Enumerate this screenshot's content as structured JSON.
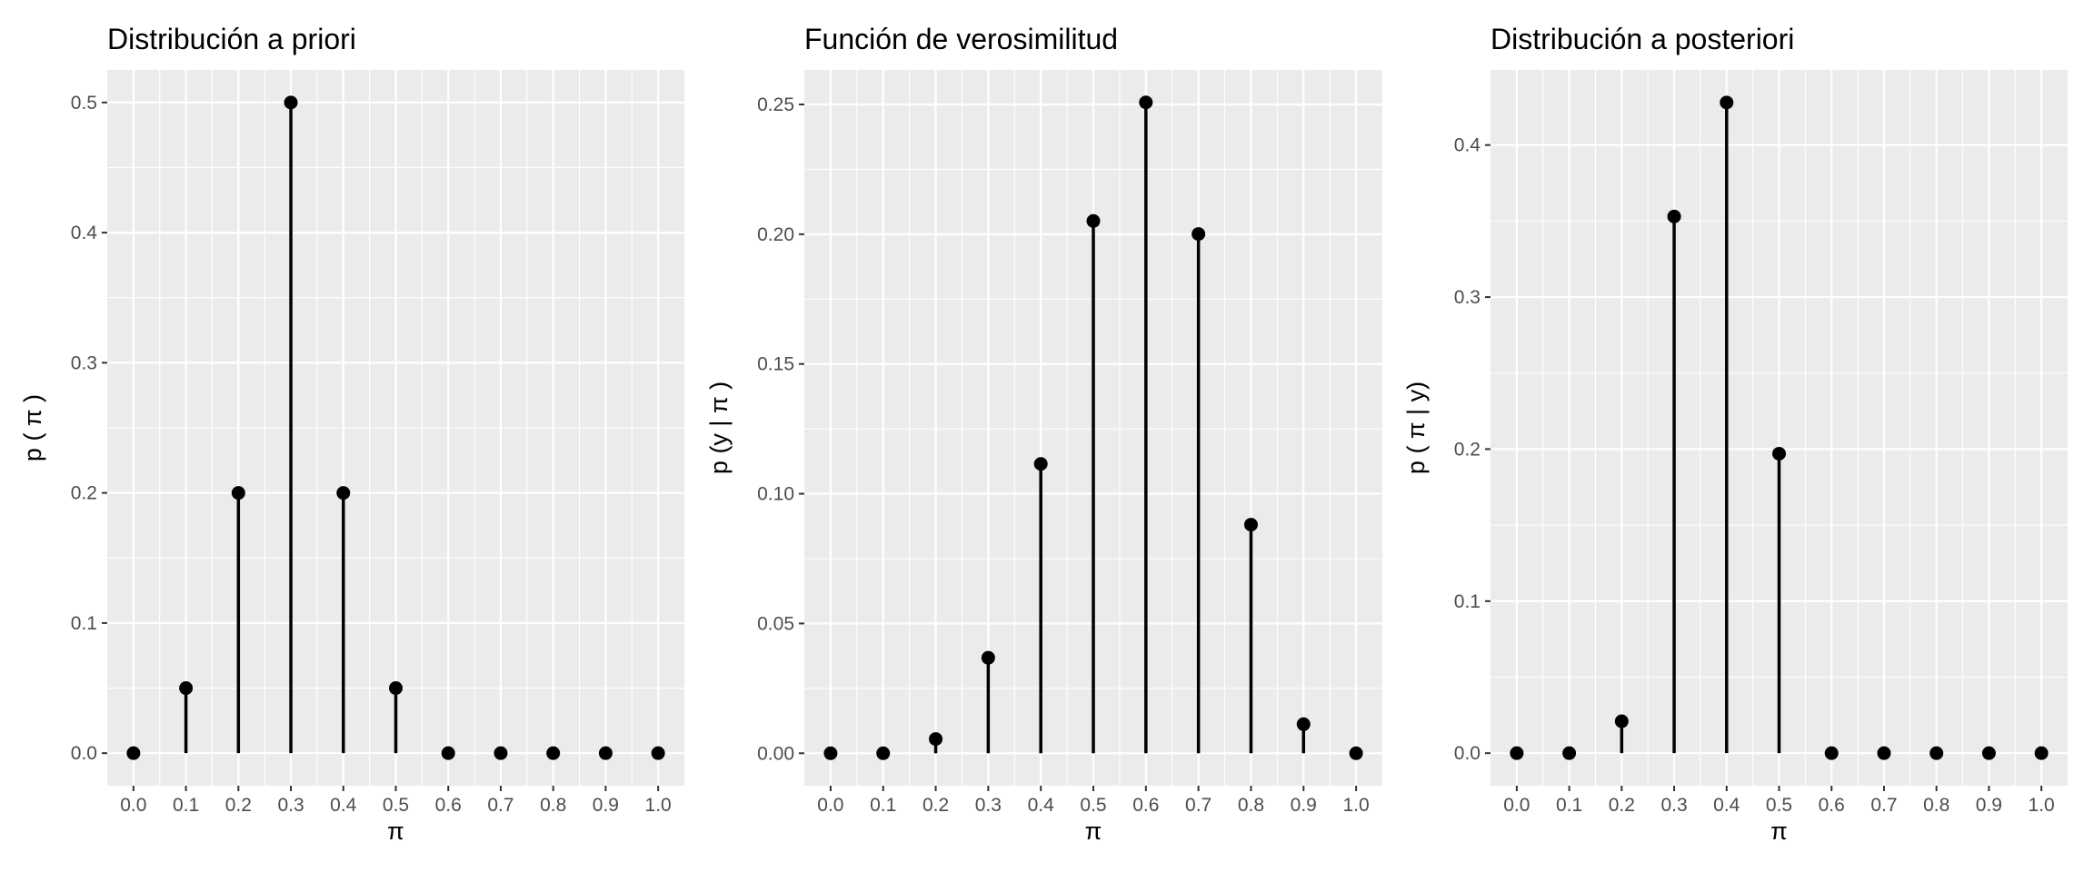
{
  "chart_data": [
    {
      "type": "scatter",
      "mark": "lollipop",
      "title": "Distribución a priori",
      "xlabel": "π",
      "ylabel": "p ( π )",
      "x": [
        0.0,
        0.1,
        0.2,
        0.3,
        0.4,
        0.5,
        0.6,
        0.7,
        0.8,
        0.9,
        1.0
      ],
      "y": [
        0.0,
        0.05,
        0.2,
        0.5,
        0.2,
        0.05,
        0.0,
        0.0,
        0.0,
        0.0,
        0.0
      ],
      "xlim": [
        -0.05,
        1.05
      ],
      "ylim": [
        -0.025,
        0.525
      ],
      "xticks": [
        "0.0",
        "0.1",
        "0.2",
        "0.3",
        "0.4",
        "0.5",
        "0.6",
        "0.7",
        "0.8",
        "0.9",
        "1.0"
      ],
      "yticks": [
        0.0,
        0.1,
        0.2,
        0.3,
        0.4,
        0.5
      ],
      "ytick_labels": [
        "0.0",
        "0.1",
        "0.2",
        "0.3",
        "0.4",
        "0.5"
      ],
      "grid": true
    },
    {
      "type": "scatter",
      "mark": "lollipop",
      "title": "Función de verosimilitud",
      "xlabel": "π",
      "ylabel": "p (y |  π )",
      "x": [
        0.0,
        0.1,
        0.2,
        0.3,
        0.4,
        0.5,
        0.6,
        0.7,
        0.8,
        0.9,
        1.0
      ],
      "y": [
        0.0,
        0.0,
        0.0055,
        0.0368,
        0.1115,
        0.2051,
        0.2508,
        0.2001,
        0.0881,
        0.0112,
        0.0
      ],
      "xlim": [
        -0.05,
        1.05
      ],
      "ylim": [
        -0.0125,
        0.2633
      ],
      "xticks": [
        "0.0",
        "0.1",
        "0.2",
        "0.3",
        "0.4",
        "0.5",
        "0.6",
        "0.7",
        "0.8",
        "0.9",
        "1.0"
      ],
      "yticks": [
        0.0,
        0.05,
        0.1,
        0.15,
        0.2,
        0.25
      ],
      "ytick_labels": [
        "0.00",
        "0.05",
        "0.10",
        "0.15",
        "0.20",
        "0.25"
      ],
      "grid": true
    },
    {
      "type": "scatter",
      "mark": "lollipop",
      "title": "Distribución a posteriori",
      "xlabel": "π",
      "ylabel": "p ( π  | y)",
      "x": [
        0.0,
        0.1,
        0.2,
        0.3,
        0.4,
        0.5,
        0.6,
        0.7,
        0.8,
        0.9,
        1.0
      ],
      "y": [
        0.0,
        0.0,
        0.021,
        0.353,
        0.428,
        0.197,
        0.0,
        0.0,
        0.0,
        0.0,
        0.0
      ],
      "xlim": [
        -0.05,
        1.05
      ],
      "ylim": [
        -0.0214,
        0.4494
      ],
      "xticks": [
        "0.0",
        "0.1",
        "0.2",
        "0.3",
        "0.4",
        "0.5",
        "0.6",
        "0.7",
        "0.8",
        "0.9",
        "1.0"
      ],
      "yticks": [
        0.0,
        0.1,
        0.2,
        0.3,
        0.4
      ],
      "ytick_labels": [
        "0.0",
        "0.1",
        "0.2",
        "0.3",
        "0.4"
      ],
      "grid": true
    }
  ]
}
